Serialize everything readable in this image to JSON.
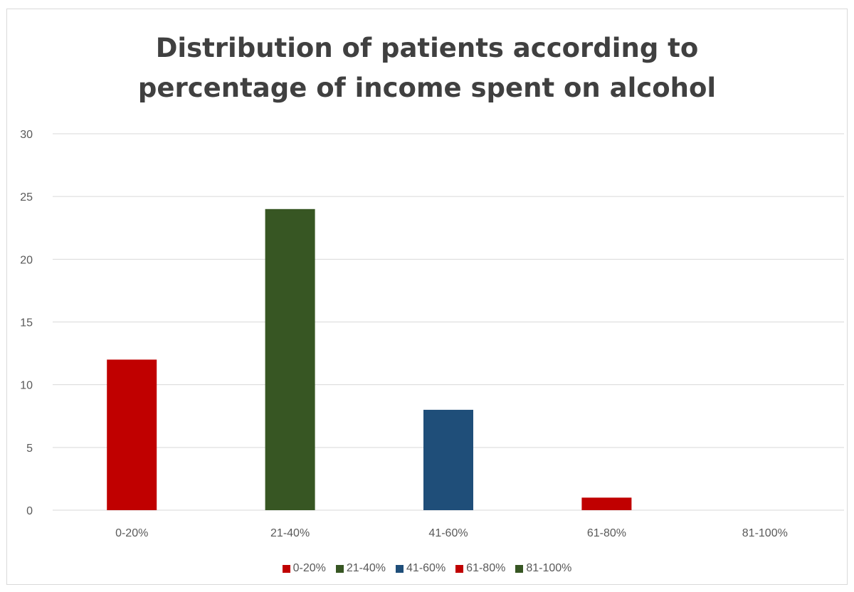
{
  "chart_data": {
    "type": "bar",
    "title": "Distribution of patients according to percentage of income spent on alcohol",
    "title_lines": [
      "Distribution of patients according to",
      "percentage of income spent on alcohol"
    ],
    "categories": [
      "0-20%",
      "21-40%",
      "41-60%",
      "61-80%",
      "81-100%"
    ],
    "values": [
      12,
      24,
      8,
      1,
      0
    ],
    "colors": [
      "#c00000",
      "#375623",
      "#1f4e79",
      "#c00000",
      "#375623"
    ],
    "ylim": [
      0,
      30
    ],
    "yticks": [
      0,
      5,
      10,
      15,
      20,
      25,
      30
    ],
    "grid": true,
    "legend_position": "bottom",
    "legend": [
      {
        "label": "0-20%",
        "color": "#c00000"
      },
      {
        "label": "21-40%",
        "color": "#375623"
      },
      {
        "label": "41-60%",
        "color": "#1f4e79"
      },
      {
        "label": "61-80%",
        "color": "#c00000"
      },
      {
        "label": "81-100%",
        "color": "#375623"
      }
    ]
  }
}
